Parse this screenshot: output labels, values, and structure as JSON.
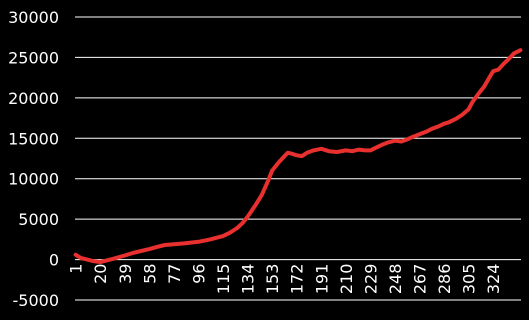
{
  "chart_data": {
    "type": "line",
    "title": "",
    "xlabel": "",
    "ylabel": "",
    "ylim": [
      -5000,
      30000
    ],
    "xlim": [
      1,
      345
    ],
    "grid": true,
    "legend": "none",
    "colors": {
      "background": "#000000",
      "series": "#e8302e",
      "grid": "#ffffff",
      "text": "#ffffff"
    },
    "y_ticks": [
      {
        "value": 30000,
        "label": "30000"
      },
      {
        "value": 25000,
        "label": "25000"
      },
      {
        "value": 20000,
        "label": "20000"
      },
      {
        "value": 15000,
        "label": "15000"
      },
      {
        "value": 10000,
        "label": "10000"
      },
      {
        "value": 5000,
        "label": "5000"
      },
      {
        "value": 0,
        "label": "0"
      },
      {
        "value": -5000,
        "label": "-5000"
      }
    ],
    "x_ticks": [
      {
        "value": 1,
        "label": "1"
      },
      {
        "value": 20,
        "label": "20"
      },
      {
        "value": 39,
        "label": "39"
      },
      {
        "value": 58,
        "label": "58"
      },
      {
        "value": 77,
        "label": "77"
      },
      {
        "value": 96,
        "label": "96"
      },
      {
        "value": 115,
        "label": "115"
      },
      {
        "value": 134,
        "label": "134"
      },
      {
        "value": 153,
        "label": "153"
      },
      {
        "value": 172,
        "label": "172"
      },
      {
        "value": 191,
        "label": "191"
      },
      {
        "value": 210,
        "label": "210"
      },
      {
        "value": 229,
        "label": "229"
      },
      {
        "value": 248,
        "label": "248"
      },
      {
        "value": 267,
        "label": "267"
      },
      {
        "value": 286,
        "label": "286"
      },
      {
        "value": 305,
        "label": "305"
      },
      {
        "value": 324,
        "label": "324"
      }
    ],
    "series": [
      {
        "x": [
          1,
          5,
          10,
          15,
          20,
          25,
          30,
          39,
          45,
          50,
          58,
          65,
          70,
          77,
          85,
          96,
          105,
          115,
          120,
          126,
          130,
          134,
          140,
          145,
          150,
          153,
          158,
          162,
          165,
          168,
          172,
          176,
          180,
          185,
          191,
          197,
          203,
          210,
          215,
          220,
          225,
          229,
          234,
          238,
          243,
          248,
          253,
          258,
          262,
          267,
          272,
          277,
          282,
          286,
          290,
          295,
          300,
          305,
          308,
          313,
          317,
          321,
          324,
          328,
          332,
          336,
          340,
          345
        ],
        "values": [
          600,
          200,
          0,
          -200,
          -300,
          -100,
          100,
          500,
          800,
          1000,
          1300,
          1600,
          1800,
          1900,
          2000,
          2200,
          2500,
          2900,
          3300,
          3900,
          4500,
          5300,
          6700,
          8000,
          9800,
          11000,
          12000,
          12700,
          13200,
          13100,
          12900,
          12800,
          13200,
          13500,
          13700,
          13400,
          13300,
          13500,
          13400,
          13600,
          13500,
          13500,
          13900,
          14200,
          14500,
          14700,
          14600,
          14900,
          15200,
          15500,
          15800,
          16200,
          16500,
          16800,
          17000,
          17400,
          17900,
          18600,
          19500,
          20600,
          21400,
          22500,
          23300,
          23500,
          24200,
          24800,
          25500,
          25900
        ]
      }
    ]
  }
}
